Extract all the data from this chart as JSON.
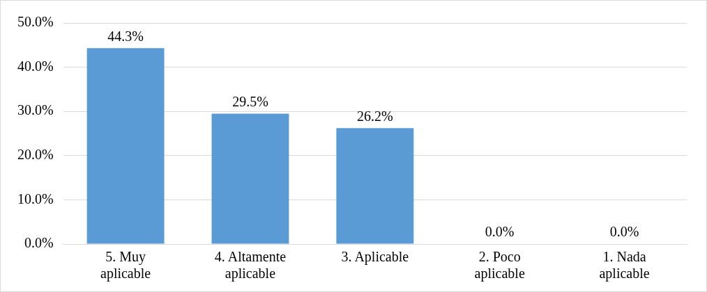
{
  "chart_data": {
    "type": "bar",
    "categories": [
      "5. Muy aplicable",
      "4. Altamente aplicable",
      "3. Aplicable",
      "2. Poco aplicable",
      "1. Nada aplicable"
    ],
    "values": [
      44.3,
      29.5,
      26.2,
      0.0,
      0.0
    ],
    "value_labels": [
      "44.3%",
      "29.5%",
      "26.2%",
      "0.0%",
      "0.0%"
    ],
    "color": "#5b9bd5",
    "ylim": [
      0,
      50
    ],
    "yticks": [
      {
        "value": 0,
        "label": "0.0%"
      },
      {
        "value": 10,
        "label": "10.0%"
      },
      {
        "value": 20,
        "label": "20.0%"
      },
      {
        "value": 30,
        "label": "30.0%"
      },
      {
        "value": 40,
        "label": "40.0%"
      },
      {
        "value": 50,
        "label": "50.0%"
      }
    ],
    "grid": "y",
    "legend": false
  }
}
